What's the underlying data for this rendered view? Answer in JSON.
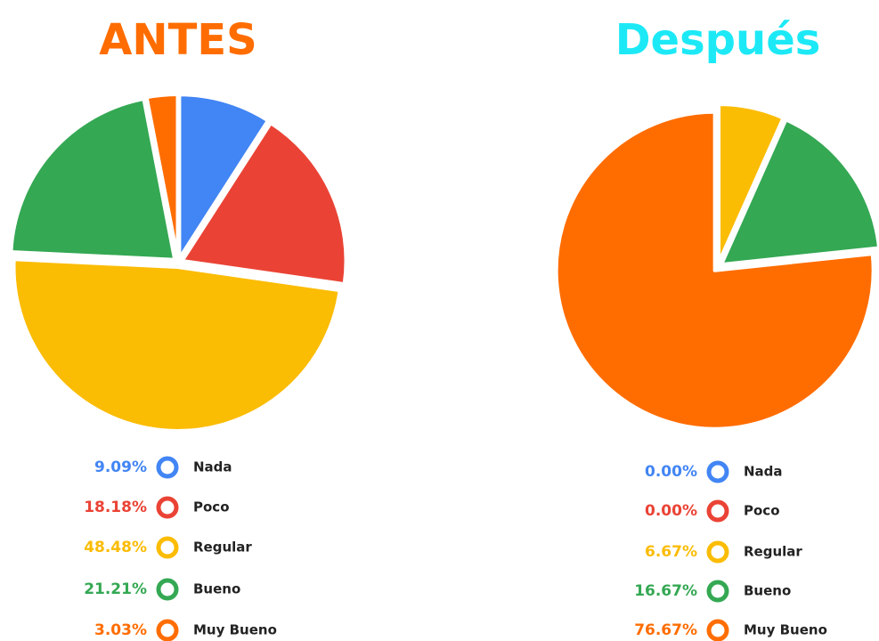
{
  "chart_data": [
    {
      "type": "pie",
      "title": "ANTES",
      "title_color": "#ff6d01",
      "categories": [
        "Nada",
        "Poco",
        "Regular",
        "Bueno",
        "Muy Bueno"
      ],
      "values": [
        9.09,
        18.18,
        48.48,
        21.21,
        3.03
      ],
      "value_labels": [
        "9.09%",
        "18.18%",
        "48.48%",
        "21.21%",
        "3.03%"
      ],
      "colors": [
        "#4285f4",
        "#ea4335",
        "#fbbc04",
        "#34a853",
        "#ff6d01"
      ]
    },
    {
      "type": "pie",
      "title": "Después",
      "title_color": "#1de9f6",
      "categories": [
        "Nada",
        "Poco",
        "Regular",
        "Bueno",
        "Muy Bueno"
      ],
      "values": [
        0,
        0,
        6.67,
        16.67,
        76.67
      ],
      "value_labels": [
        "0.00%",
        "0.00%",
        "6.67%",
        "16.67%",
        "76.67%"
      ],
      "colors": [
        "#4285f4",
        "#ea4335",
        "#fbbc04",
        "#34a853",
        "#ff6d01"
      ]
    }
  ]
}
